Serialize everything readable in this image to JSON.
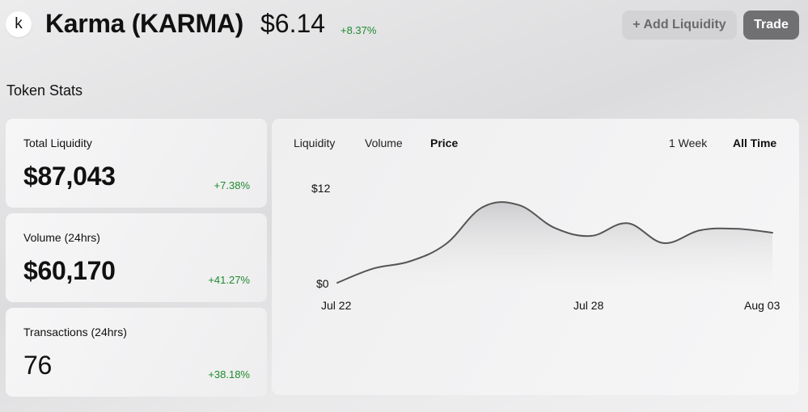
{
  "header": {
    "logo_letter": "k",
    "token_name": "Karma (KARMA)",
    "price": "$6.14",
    "price_change": "+8.37%",
    "add_liquidity_label": "+ Add Liquidity",
    "trade_label": "Trade"
  },
  "section": {
    "title": "Token Stats"
  },
  "stats": [
    {
      "label": "Total Liquidity",
      "value": "$87,043",
      "change": "+7.38%"
    },
    {
      "label": "Volume (24hrs)",
      "value": "$60,170",
      "change": "+41.27%"
    },
    {
      "label": "Transactions (24hrs)",
      "value": "76",
      "change": "+38.18%"
    }
  ],
  "chart": {
    "metric_tabs": [
      "Liquidity",
      "Volume",
      "Price"
    ],
    "active_metric": "Price",
    "range_tabs": [
      "1 Week",
      "All Time"
    ],
    "active_range": "All Time",
    "y_labels": [
      "$12",
      "$0"
    ],
    "x_labels": [
      "Jul 22",
      "Jul 28",
      "Aug 03"
    ],
    "line_color": "#555555"
  },
  "chart_data": {
    "type": "area",
    "x": [
      "Jul 22",
      "Jul 23",
      "Jul 24",
      "Jul 25",
      "Jul 26",
      "Jul 27",
      "Jul 28",
      "Jul 29",
      "Jul 30",
      "Jul 31",
      "Aug 01",
      "Aug 02",
      "Aug 03"
    ],
    "series": [
      {
        "values": [
          0.3,
          2.1,
          3.0,
          5.2,
          9.8,
          10.1,
          7.2,
          6.2,
          7.8,
          5.3,
          6.9,
          7.1,
          6.6
        ]
      }
    ],
    "ylim": [
      0,
      12
    ],
    "title": "",
    "xlabel": "",
    "ylabel": ""
  }
}
